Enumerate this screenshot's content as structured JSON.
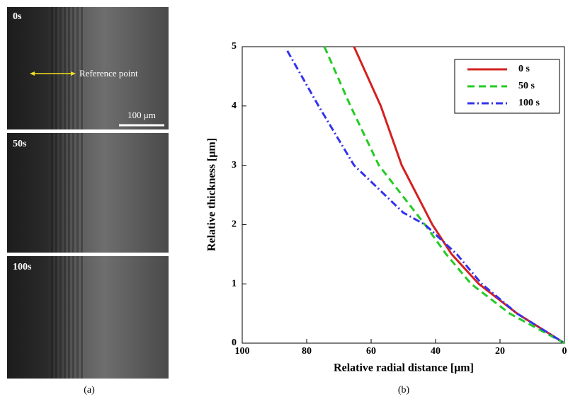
{
  "images": [
    {
      "label": "0s",
      "annotation": "Reference point",
      "scale_bar": "100 μm"
    },
    {
      "label": "50s"
    },
    {
      "label": "100s"
    }
  ],
  "captions": [
    "(a)",
    "(b)"
  ],
  "chart_data": {
    "type": "line",
    "xlabel": "Relative radial distance [μm]",
    "ylabel": "Relative thickness [μm]",
    "xlim": [
      100,
      0
    ],
    "xticks": [
      100,
      80,
      60,
      40,
      20,
      0
    ],
    "ylim": [
      0,
      5
    ],
    "yticks": [
      0,
      1,
      2,
      3,
      4,
      5
    ],
    "legend": "upper right",
    "series": [
      {
        "name": "0 s",
        "color": "#d42020",
        "dash": "solid",
        "x": [
          65.3,
          57,
          50.5,
          41,
          35,
          26.6,
          14.7,
          0
        ],
        "values": [
          5,
          4,
          3,
          2,
          1.5,
          1,
          0.5,
          0
        ]
      },
      {
        "name": "50 s",
        "color": "#22cc22",
        "dash": "dashed",
        "x": [
          74.5,
          66.4,
          57.6,
          43.3,
          36.7,
          29,
          17,
          0
        ],
        "values": [
          5,
          4,
          3,
          2,
          1.5,
          1,
          0.5,
          0
        ]
      },
      {
        "name": "100 s",
        "color": "#3333ee",
        "dash": "dashdot",
        "x": [
          86,
          76.3,
          65.3,
          50,
          43.3,
          33.4,
          25.7,
          14.7,
          0
        ],
        "values": [
          4.93,
          4,
          3,
          2.2,
          2,
          1.5,
          1,
          0.5,
          0
        ]
      }
    ]
  }
}
